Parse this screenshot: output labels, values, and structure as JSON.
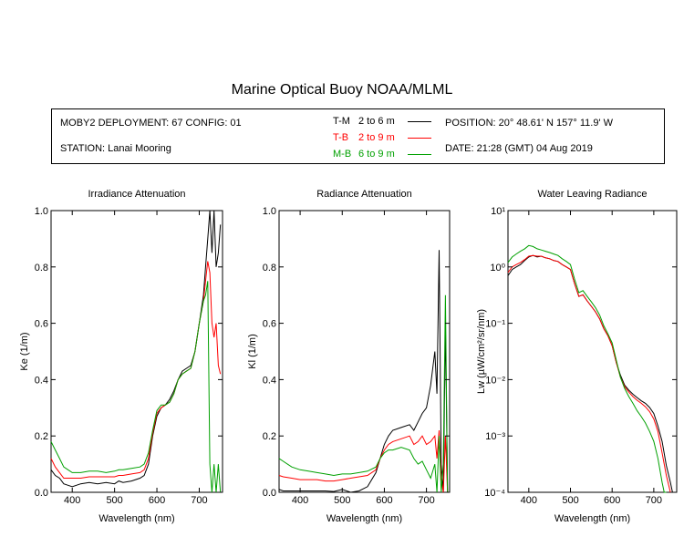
{
  "title": "Marine Optical Buoy NOAA/MLML",
  "header": {
    "deployment": "MOBY2 DEPLOYMENT: 67 CONFIG: 01",
    "station": "STATION: Lanai Mooring",
    "position": "POSITION: 20° 48.61' N   157° 11.9' W",
    "date": "DATE: 21:28 (GMT) 04 Aug 2019",
    "legend": [
      {
        "code": "T-M",
        "range": "2 to 6  m",
        "color": "#000000"
      },
      {
        "code": "T-B",
        "range": "2 to 9  m",
        "color": "#ff0000"
      },
      {
        "code": "M-B",
        "range": "6 to 9  m",
        "color": "#00a000"
      }
    ]
  },
  "chart_data": [
    {
      "type": "line",
      "title": "Irradiance Attenuation",
      "xlabel": "Wavelength (nm)",
      "ylabel": "Ke  (1/m)",
      "xlim": [
        350,
        755
      ],
      "ylim": [
        0,
        1.0
      ],
      "yscale": "linear",
      "xticks": [
        400,
        500,
        600,
        700
      ],
      "yticks": [
        "0.0",
        "0.2",
        "0.4",
        "0.6",
        "0.8",
        "1.0"
      ],
      "ytick_values": [
        0,
        0.2,
        0.4,
        0.6,
        0.8,
        1.0
      ],
      "series": [
        {
          "label": "T-M",
          "color": "#000000",
          "x": [
            350,
            360,
            370,
            380,
            390,
            400,
            420,
            440,
            460,
            480,
            500,
            510,
            520,
            540,
            560,
            570,
            580,
            590,
            600,
            610,
            620,
            630,
            640,
            650,
            660,
            670,
            680,
            690,
            700,
            710,
            715,
            720,
            725,
            730,
            735,
            740,
            745,
            750
          ],
          "y": [
            0.08,
            0.06,
            0.05,
            0.03,
            0.025,
            0.02,
            0.03,
            0.035,
            0.03,
            0.035,
            0.03,
            0.04,
            0.035,
            0.04,
            0.05,
            0.06,
            0.1,
            0.2,
            0.27,
            0.3,
            0.31,
            0.33,
            0.36,
            0.4,
            0.43,
            0.44,
            0.45,
            0.5,
            0.6,
            0.7,
            0.8,
            0.9,
            1.0,
            0.85,
            1.0,
            0.8,
            0.85,
            0.95
          ]
        },
        {
          "label": "T-B",
          "color": "#ff0000",
          "x": [
            350,
            360,
            370,
            380,
            390,
            400,
            420,
            440,
            460,
            480,
            500,
            510,
            520,
            540,
            560,
            570,
            580,
            590,
            600,
            610,
            620,
            630,
            640,
            650,
            660,
            670,
            680,
            690,
            700,
            710,
            715,
            720,
            725,
            730,
            735,
            740,
            745,
            750
          ],
          "y": [
            0.12,
            0.09,
            0.07,
            0.05,
            0.05,
            0.05,
            0.05,
            0.055,
            0.055,
            0.055,
            0.055,
            0.06,
            0.06,
            0.065,
            0.07,
            0.08,
            0.12,
            0.21,
            0.28,
            0.3,
            0.31,
            0.32,
            0.35,
            0.4,
            0.42,
            0.43,
            0.44,
            0.5,
            0.6,
            0.68,
            0.75,
            0.82,
            0.78,
            0.6,
            0.55,
            0.6,
            0.45,
            0.42
          ]
        },
        {
          "label": "M-B",
          "color": "#00a000",
          "x": [
            350,
            360,
            370,
            380,
            390,
            400,
            420,
            440,
            460,
            480,
            500,
            510,
            520,
            540,
            560,
            570,
            580,
            590,
            600,
            610,
            620,
            630,
            640,
            650,
            660,
            670,
            680,
            690,
            700,
            710,
            715,
            720,
            725,
            730,
            735,
            740,
            745,
            750
          ],
          "y": [
            0.18,
            0.15,
            0.12,
            0.09,
            0.08,
            0.07,
            0.07,
            0.075,
            0.075,
            0.07,
            0.075,
            0.08,
            0.08,
            0.085,
            0.09,
            0.1,
            0.14,
            0.22,
            0.29,
            0.31,
            0.31,
            0.32,
            0.35,
            0.4,
            0.42,
            0.43,
            0.44,
            0.5,
            0.6,
            0.68,
            0.7,
            0.75,
            0.1,
            0.0,
            0.1,
            0.0,
            0.1,
            0.0
          ]
        }
      ]
    },
    {
      "type": "line",
      "title": "Radiance Attenuation",
      "xlabel": "Wavelength (nm)",
      "ylabel": "Kl  (1/m)",
      "xlim": [
        350,
        755
      ],
      "ylim": [
        0,
        1.0
      ],
      "yscale": "linear",
      "xticks": [
        400,
        500,
        600,
        700
      ],
      "yticks": [
        "0.0",
        "0.2",
        "0.4",
        "0.6",
        "0.8",
        "1.0"
      ],
      "ytick_values": [
        0,
        0.2,
        0.4,
        0.6,
        0.8,
        1.0
      ],
      "series": [
        {
          "label": "T-M",
          "color": "#000000",
          "x": [
            350,
            360,
            380,
            400,
            420,
            440,
            460,
            480,
            500,
            520,
            540,
            560,
            580,
            590,
            600,
            610,
            620,
            640,
            660,
            670,
            680,
            690,
            700,
            710,
            720,
            725,
            730,
            735,
            740,
            745,
            750
          ],
          "y": [
            0.01,
            0.005,
            0.005,
            0.005,
            0.005,
            0.005,
            0.005,
            0.003,
            0.01,
            0.0,
            0.005,
            0.02,
            0.07,
            0.12,
            0.17,
            0.2,
            0.22,
            0.23,
            0.24,
            0.22,
            0.25,
            0.28,
            0.3,
            0.38,
            0.5,
            0.35,
            0.86,
            0.1,
            0.0,
            0.6,
            0.0
          ]
        },
        {
          "label": "T-B",
          "color": "#ff0000",
          "x": [
            350,
            360,
            380,
            400,
            420,
            440,
            460,
            480,
            500,
            520,
            540,
            560,
            580,
            590,
            600,
            610,
            620,
            640,
            660,
            670,
            680,
            690,
            700,
            710,
            720,
            725,
            730,
            735,
            740,
            745,
            750
          ],
          "y": [
            0.06,
            0.055,
            0.05,
            0.045,
            0.045,
            0.045,
            0.04,
            0.04,
            0.045,
            0.05,
            0.055,
            0.06,
            0.08,
            0.12,
            0.15,
            0.17,
            0.18,
            0.19,
            0.2,
            0.17,
            0.18,
            0.2,
            0.17,
            0.18,
            0.2,
            0.12,
            0.22,
            0.05,
            0.0,
            0.2,
            0.0
          ]
        },
        {
          "label": "M-B",
          "color": "#00a000",
          "x": [
            350,
            360,
            380,
            400,
            420,
            440,
            460,
            480,
            500,
            520,
            540,
            560,
            580,
            590,
            600,
            610,
            620,
            640,
            660,
            670,
            680,
            690,
            700,
            710,
            720,
            725,
            730,
            735,
            740,
            745,
            750
          ],
          "y": [
            0.12,
            0.11,
            0.09,
            0.08,
            0.075,
            0.07,
            0.065,
            0.06,
            0.065,
            0.065,
            0.07,
            0.075,
            0.09,
            0.12,
            0.14,
            0.15,
            0.15,
            0.16,
            0.15,
            0.12,
            0.1,
            0.11,
            0.08,
            0.05,
            0.1,
            0.0,
            0.2,
            0.0,
            0.1,
            0.7,
            0.0
          ]
        }
      ]
    },
    {
      "type": "line",
      "title": "Water Leaving Radiance",
      "xlabel": "Wavelength (nm)",
      "ylabel": "Lw  (µW/cm²/sr/nm)",
      "xlim": [
        350,
        755
      ],
      "ylim": [
        0.0001,
        10
      ],
      "yscale": "log",
      "xticks": [
        400,
        500,
        600,
        700
      ],
      "yticks": [
        "10⁻⁴",
        "10⁻³",
        "10⁻²",
        "10⁻¹",
        "10⁰",
        "10¹"
      ],
      "ytick_values": [
        0.0001,
        0.001,
        0.01,
        0.1,
        1,
        10
      ],
      "series": [
        {
          "label": "T-M",
          "color": "#000000",
          "x": [
            350,
            360,
            370,
            380,
            390,
            400,
            410,
            420,
            430,
            440,
            450,
            460,
            470,
            480,
            490,
            500,
            510,
            520,
            530,
            540,
            550,
            560,
            570,
            580,
            590,
            600,
            610,
            620,
            630,
            640,
            650,
            660,
            670,
            680,
            690,
            700,
            710,
            720,
            730,
            740,
            745
          ],
          "y": [
            0.7,
            0.9,
            1.0,
            1.1,
            1.3,
            1.5,
            1.6,
            1.5,
            1.55,
            1.45,
            1.4,
            1.3,
            1.25,
            1.1,
            1.0,
            0.9,
            0.5,
            0.3,
            0.32,
            0.25,
            0.2,
            0.16,
            0.12,
            0.08,
            0.06,
            0.04,
            0.02,
            0.012,
            0.008,
            0.0065,
            0.0055,
            0.0048,
            0.0042,
            0.0038,
            0.0032,
            0.0025,
            0.0015,
            0.0008,
            0.0003,
            0.00015,
            0.0001
          ]
        },
        {
          "label": "T-B",
          "color": "#ff0000",
          "x": [
            350,
            360,
            370,
            380,
            390,
            400,
            410,
            420,
            430,
            440,
            450,
            460,
            470,
            480,
            490,
            500,
            510,
            520,
            530,
            540,
            550,
            560,
            570,
            580,
            590,
            600,
            610,
            620,
            630,
            640,
            650,
            660,
            670,
            680,
            690,
            700,
            710,
            720,
            730,
            740
          ],
          "y": [
            0.8,
            1.0,
            1.1,
            1.2,
            1.35,
            1.55,
            1.6,
            1.55,
            1.55,
            1.45,
            1.4,
            1.3,
            1.25,
            1.1,
            1.0,
            0.9,
            0.5,
            0.3,
            0.32,
            0.25,
            0.2,
            0.16,
            0.12,
            0.08,
            0.06,
            0.04,
            0.02,
            0.011,
            0.0075,
            0.006,
            0.005,
            0.0043,
            0.0038,
            0.0033,
            0.0027,
            0.002,
            0.0012,
            0.0005,
            0.0002,
            0.0001
          ]
        },
        {
          "label": "M-B",
          "color": "#00a000",
          "x": [
            350,
            360,
            370,
            380,
            390,
            400,
            410,
            420,
            430,
            440,
            450,
            460,
            470,
            480,
            490,
            500,
            510,
            520,
            530,
            540,
            550,
            560,
            570,
            580,
            590,
            600,
            610,
            620,
            630,
            640,
            650,
            660,
            670,
            680,
            690,
            700,
            710,
            720,
            725,
            730
          ],
          "y": [
            1.2,
            1.5,
            1.7,
            1.9,
            2.1,
            2.4,
            2.3,
            2.1,
            2.0,
            1.9,
            1.8,
            1.7,
            1.6,
            1.4,
            1.25,
            1.1,
            0.6,
            0.35,
            0.38,
            0.3,
            0.24,
            0.19,
            0.14,
            0.09,
            0.065,
            0.045,
            0.022,
            0.011,
            0.007,
            0.005,
            0.0038,
            0.0028,
            0.0022,
            0.0017,
            0.0012,
            0.0008,
            0.0004,
            0.00015,
            0.0001,
            0.0001
          ]
        }
      ]
    }
  ]
}
